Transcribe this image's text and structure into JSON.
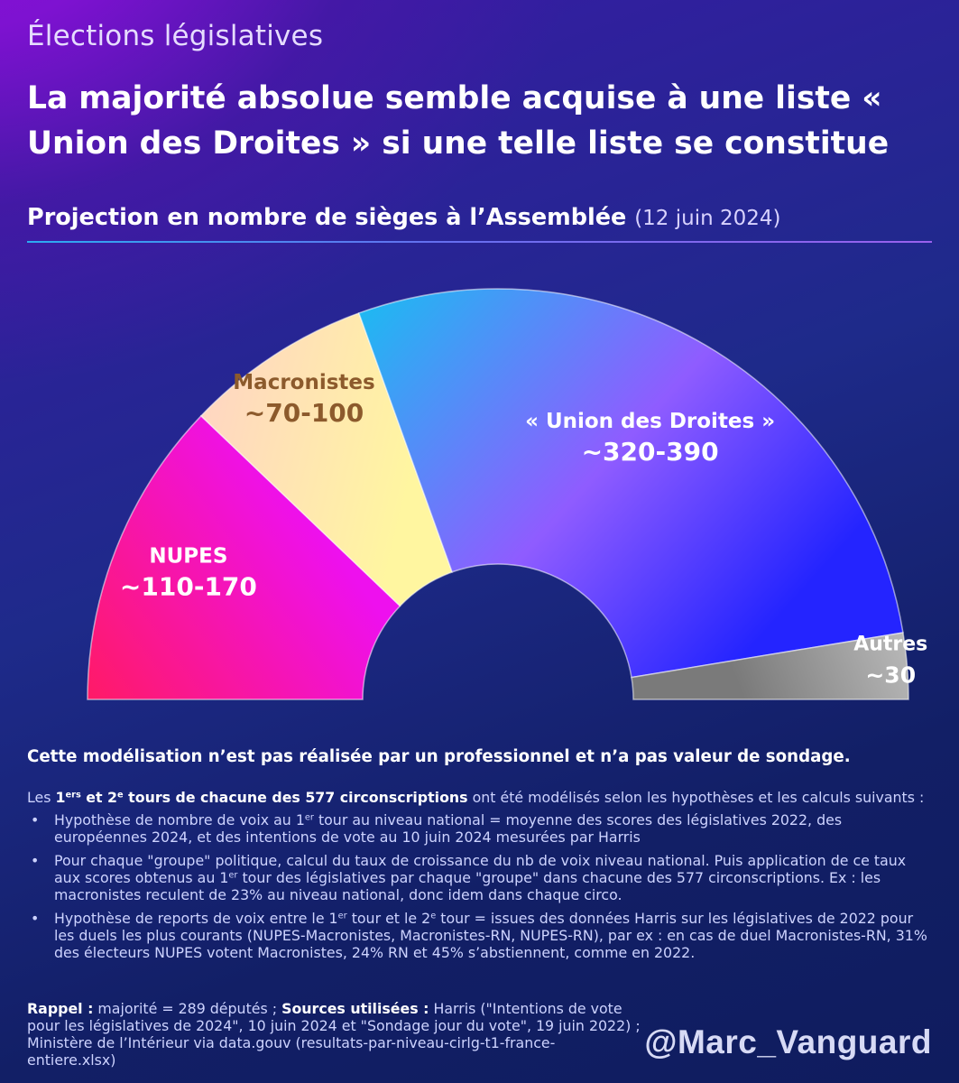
{
  "header": {
    "supertitle": "Élections législatives",
    "title": "La majorité absolue semble acquise à une liste « Union des Droites » si une telle liste se constitue",
    "subtitle": "Projection en nombre de sièges à l’Assemblée",
    "subtitle_date": "(12 juin 2024)"
  },
  "chart_data": {
    "type": "pie",
    "variant": "semicircle-hemicycle",
    "total_seats": 577,
    "series": [
      {
        "name": "NUPES",
        "label": "~110-170",
        "seats": 140,
        "color_start": "#ff1a66",
        "color_end": "#ee10ee",
        "text_color": "#ffffff"
      },
      {
        "name": "Macronistes",
        "label": "~70-100",
        "seats": 85,
        "color_start": "#ffd6c2",
        "color_end": "#fff6a0",
        "text_color": "#8c5a2c"
      },
      {
        "name": "« Union des Droites »",
        "label": "~320-390",
        "seats": 322,
        "color_start": "#1fb8f2",
        "color_end": "#2424ff",
        "text_color": "#ffffff"
      },
      {
        "name": "Autres",
        "label": "~30",
        "seats": 30,
        "color_start": "#b8b8b8",
        "color_end": "#7a7a7a",
        "text_color": "#ffffff"
      }
    ]
  },
  "notes": {
    "disclaimer": "Cette modélisation n’est pas réalisée par un professionnel et n’a pas valeur de sondage.",
    "intro_pre": "Les ",
    "intro_bold_1": "1",
    "intro_bold_1_sup": "ers",
    "intro_bold_2": " et 2",
    "intro_bold_2_sup": "e",
    "intro_bold_3": " tours de chacune des 577 circonscriptions",
    "intro_post": " ont été modélisés selon les hypothèses et les calculs suivants :",
    "bullet1_a": "Hypothèse de nombre de voix au 1",
    "bullet1_sup": "er",
    "bullet1_b": " tour au niveau national = moyenne des scores des législatives 2022, des européennes 2024, et des intentions de vote au 10 juin 2024 mesurées par Harris",
    "bullet2_a": "Pour chaque \"groupe\" politique, calcul du taux de croissance du nb de voix niveau national. Puis application de ce taux aux scores obtenus au 1",
    "bullet2_sup": "er",
    "bullet2_b": " tour des législatives par chaque \"groupe\" dans chacune des 577 circonscriptions. Ex : les macronistes reculent de 23% au niveau national, donc idem dans chaque circo.",
    "bullet3_a": "Hypothèse de reports de voix entre le 1",
    "bullet3_sup1": "er",
    "bullet3_b": " tour et le 2",
    "bullet3_sup2": "e",
    "bullet3_c": " tour = issues des données Harris sur les législatives de 2022 pour les duels les plus courants (NUPES-Macronistes, Macronistes-RN, NUPES-RN), par ex : en cas de duel Macronistes-RN, 31% des électeurs NUPES votent Macronistes, 24% RN et 45% s’abstiennent, comme en 2022."
  },
  "footer": {
    "rappel_label": "Rappel :",
    "rappel_text": " majorité = 289 députés ; ",
    "sources_label": "Sources utilisées :",
    "sources_text": " Harris (\"Intentions de vote pour les législatives de 2024\", 10 juin 2024 et \"Sondage jour du vote\", 19 juin 2022) ; Ministère de l’Intérieur via data.gouv (resultats-par-niveau-cirlg-t1-france-entiere.xlsx)",
    "handle": "@Marc_Vanguard"
  }
}
